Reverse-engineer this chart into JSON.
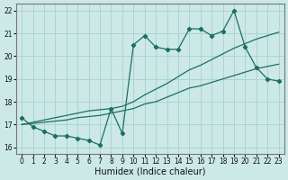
{
  "xlabel": "Humidex (Indice chaleur)",
  "xlim": [
    -0.5,
    23.5
  ],
  "ylim": [
    15.7,
    22.3
  ],
  "yticks": [
    16,
    17,
    18,
    19,
    20,
    21,
    22
  ],
  "xticks": [
    0,
    1,
    2,
    3,
    4,
    5,
    6,
    7,
    8,
    9,
    10,
    11,
    12,
    13,
    14,
    15,
    16,
    17,
    18,
    19,
    20,
    21,
    22,
    23
  ],
  "bg_color": "#cce9e7",
  "grid_color": "#aad4d2",
  "line_color": "#1e6e62",
  "series1_x": [
    0,
    1,
    2,
    3,
    4,
    5,
    6,
    7,
    8,
    9,
    10,
    11,
    12,
    13,
    14,
    15,
    16,
    17,
    18,
    19,
    20,
    21,
    22,
    23
  ],
  "series1_y": [
    17.3,
    16.9,
    16.7,
    16.5,
    16.5,
    16.4,
    16.3,
    16.1,
    17.7,
    16.6,
    20.5,
    20.9,
    20.4,
    20.3,
    20.3,
    21.2,
    21.2,
    20.9,
    21.1,
    22.0,
    20.4,
    19.5,
    19.0,
    18.9
  ],
  "series2_x": [
    0,
    1,
    2,
    3,
    4,
    5,
    6,
    7,
    8,
    9,
    10,
    11,
    12,
    13,
    14,
    15,
    16,
    17,
    18,
    19,
    20,
    21,
    22,
    23
  ],
  "series2_y": [
    17.0,
    17.05,
    17.1,
    17.15,
    17.2,
    17.3,
    17.35,
    17.4,
    17.5,
    17.6,
    17.7,
    17.9,
    18.0,
    18.2,
    18.4,
    18.6,
    18.7,
    18.85,
    19.0,
    19.15,
    19.3,
    19.45,
    19.55,
    19.65
  ],
  "series3_x": [
    0,
    1,
    2,
    3,
    4,
    5,
    6,
    7,
    8,
    9,
    10,
    11,
    12,
    13,
    14,
    15,
    16,
    17,
    18,
    19,
    20,
    21,
    22,
    23
  ],
  "series3_y": [
    17.0,
    17.1,
    17.2,
    17.3,
    17.4,
    17.5,
    17.6,
    17.65,
    17.7,
    17.8,
    18.0,
    18.3,
    18.55,
    18.8,
    19.1,
    19.4,
    19.6,
    19.85,
    20.1,
    20.35,
    20.55,
    20.75,
    20.9,
    21.05
  ]
}
